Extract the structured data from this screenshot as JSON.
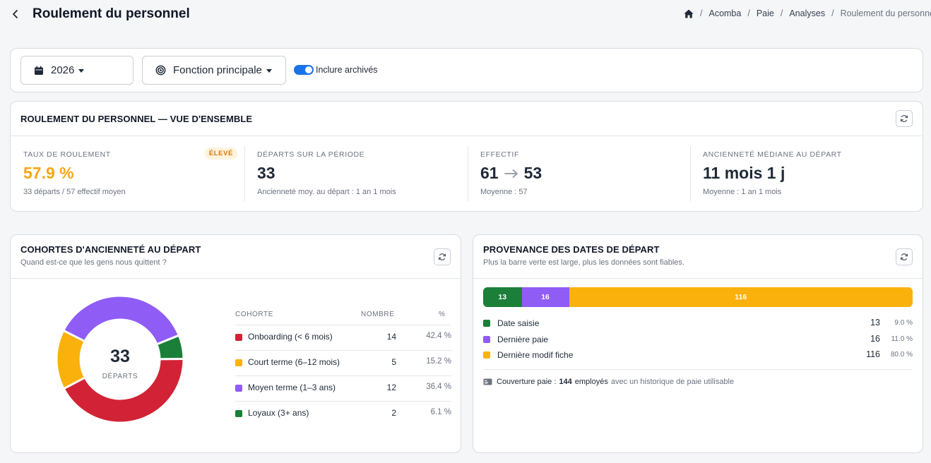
{
  "header": {
    "title": "Roulement du personnel",
    "breadcrumb": [
      "Acomba",
      "Paie",
      "Analyses"
    ],
    "breadcrumb_current": "Roulement du personnel"
  },
  "filters": {
    "year": "2026",
    "function": "Fonction principale",
    "include_archived": "Inclure archivés",
    "include_archived_on": true
  },
  "overview": {
    "title": "ROULEMENT DU PERSONNEL — VUE D'ENSEMBLE",
    "kpis": [
      {
        "label": "TAUX DE ROULEMENT",
        "value": "57.9 %",
        "sub": "33 départs / 57 effectif moyen",
        "badge": "ÉLEVÉ"
      },
      {
        "label": "DÉPARTS SUR LA PÉRIODE",
        "value": "33",
        "sub": "Ancienneté moy. au départ : 1 an 1 mois"
      },
      {
        "label": "EFFECTIF",
        "value_from": "61",
        "value_to": "53",
        "sub": "Moyenne : 57"
      },
      {
        "label": "ANCIENNETÉ MÉDIANE AU DÉPART",
        "value": "11 mois 1 j",
        "sub": "Moyenne : 1 an 1 mois"
      }
    ]
  },
  "cohorts": {
    "title": "COHORTES D'ANCIENNETÉ AU DÉPART",
    "subtitle": "Quand est-ce que les gens nous quittent ?",
    "center_value": "33",
    "center_label": "DÉPARTS",
    "columns": [
      "COHORTE",
      "NOMBRE",
      "%"
    ],
    "rows": [
      {
        "name": "Onboarding (< 6 mois)",
        "count": "14",
        "pct": "42.4 %",
        "color": "#d12335"
      },
      {
        "name": "Court terme (6–12 mois)",
        "count": "5",
        "pct": "15.2 %",
        "color": "#fbb10b"
      },
      {
        "name": "Moyen terme (1–3 ans)",
        "count": "12",
        "pct": "36.4 %",
        "color": "#8f5cf6"
      },
      {
        "name": "Loyaux (3+ ans)",
        "count": "2",
        "pct": "6.1 %",
        "color": "#1b7f39"
      }
    ]
  },
  "chart_data": {
    "type": "pie",
    "categories": [
      "Onboarding (< 6 mois)",
      "Court terme (6–12 mois)",
      "Moyen terme (1–3 ans)",
      "Loyaux (3+ ans)"
    ],
    "values": [
      14,
      5,
      12,
      2
    ]
  },
  "provenance": {
    "title": "PROVENANCE DES DATES DE DÉPART",
    "subtitle": "Plus la barre verte est large, plus les données sont fiables.",
    "segments": [
      {
        "name": "Date saisie",
        "value": 13,
        "label": "13",
        "pct": "9.0 %",
        "color": "#1b7f39"
      },
      {
        "name": "Dernière paie",
        "value": 16,
        "label": "16",
        "pct": "11.0 %",
        "color": "#8f5cf6"
      },
      {
        "name": "Dernière modif fiche",
        "value": 116,
        "label": "116",
        "pct": "80.0 %",
        "color": "#fbb10b"
      }
    ],
    "coverage_label": "Couverture paie :",
    "coverage_count": "144",
    "coverage_unit": "employés",
    "coverage_note": "avec un historique de paie utilisable"
  },
  "colors": {
    "accent": "#1a73e8",
    "warning": "#f6a615"
  }
}
